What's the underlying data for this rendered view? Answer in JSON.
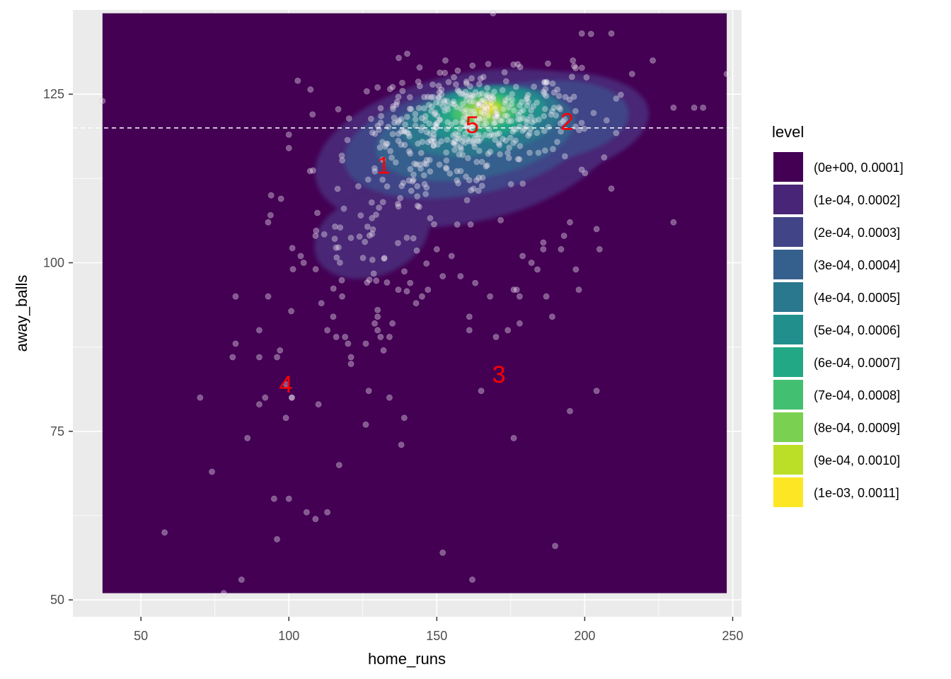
{
  "chart_data": {
    "type": "scatter",
    "title": "",
    "xlabel": "home_runs",
    "ylabel": "away_balls",
    "xlim": [
      27,
      253
    ],
    "ylim": [
      47.5,
      137.5
    ],
    "x_ticks": [
      50,
      100,
      150,
      200,
      250
    ],
    "y_ticks": [
      50,
      75,
      100,
      125
    ],
    "x_tick_labels": [
      "50",
      "100",
      "150",
      "200",
      "250"
    ],
    "y_tick_labels": [
      "50",
      "75",
      "100",
      "125"
    ],
    "grid": true,
    "background_color": "#EBEBEB",
    "raster_extent": {
      "x": [
        37,
        248
      ],
      "y": [
        51,
        137
      ]
    },
    "reference_line": {
      "type": "horizontal",
      "y": 120,
      "style": "dashed",
      "color": "#FFFFFF"
    },
    "legend": {
      "title": "level",
      "position": "right",
      "entries": [
        {
          "label": "(0e+00, 0.0001]",
          "color": "#440154"
        },
        {
          "label": "(1e-04, 0.0002]",
          "color": "#482576"
        },
        {
          "label": "(2e-04, 0.0003]",
          "color": "#414487"
        },
        {
          "label": "(3e-04, 0.0004]",
          "color": "#35608D"
        },
        {
          "label": "(4e-04, 0.0005]",
          "color": "#2A788E"
        },
        {
          "label": "(5e-04, 0.0006]",
          "color": "#21908C"
        },
        {
          "label": "(6e-04, 0.0007]",
          "color": "#22A884"
        },
        {
          "label": "(7e-04, 0.0008]",
          "color": "#43BF71"
        },
        {
          "label": "(8e-04, 0.0009]",
          "color": "#7AD151"
        },
        {
          "label": "(9e-04, 0.0010]",
          "color": "#BBDF27"
        },
        {
          "label": "(1e-03, 0.0011]",
          "color": "#FDE725"
        }
      ]
    },
    "density_blobs": [
      {
        "level": 1,
        "cx": 160,
        "cy": 117,
        "rx": 52,
        "ry": 11,
        "tilt": -12
      },
      {
        "level": 1,
        "cx": 128,
        "cy": 104,
        "rx": 20,
        "ry": 6,
        "tilt": -20
      },
      {
        "level": 1,
        "cx": 180,
        "cy": 120,
        "rx": 42,
        "ry": 8,
        "tilt": -8
      },
      {
        "level": 2,
        "cx": 160,
        "cy": 118,
        "rx": 42,
        "ry": 8,
        "tilt": -10
      },
      {
        "level": 2,
        "cx": 185,
        "cy": 121,
        "rx": 30,
        "ry": 6,
        "tilt": -6
      },
      {
        "level": 3,
        "cx": 163,
        "cy": 119,
        "rx": 34,
        "ry": 6.5,
        "tilt": -10
      },
      {
        "level": 4,
        "cx": 165,
        "cy": 121,
        "rx": 27,
        "ry": 5,
        "tilt": -8
      },
      {
        "level": 5,
        "cx": 166,
        "cy": 122,
        "rx": 21,
        "ry": 4,
        "tilt": -6
      },
      {
        "level": 6,
        "cx": 166,
        "cy": 122,
        "rx": 15,
        "ry": 3.2,
        "tilt": -6
      },
      {
        "level": 7,
        "cx": 166,
        "cy": 122.5,
        "rx": 11,
        "ry": 2.5,
        "tilt": -5
      },
      {
        "level": 8,
        "cx": 166,
        "cy": 122.5,
        "rx": 7.5,
        "ry": 1.8,
        "tilt": -4
      },
      {
        "level": 9,
        "cx": 167,
        "cy": 122.8,
        "rx": 4.5,
        "ry": 1.2,
        "tilt": -3
      },
      {
        "level": 10,
        "cx": 167,
        "cy": 123,
        "rx": 2.2,
        "ry": 0.7,
        "tilt": 0
      }
    ],
    "points_style": {
      "color": "#FFFFFF",
      "opacity": 0.35,
      "stroke": "#B8A6C8"
    },
    "point_clusters": [
      {
        "cx": 163,
        "cy": 122,
        "sx": 16,
        "sy": 3.2,
        "n": 320
      },
      {
        "cx": 145,
        "cy": 114,
        "sx": 18,
        "sy": 5,
        "n": 120
      },
      {
        "cx": 128,
        "cy": 103,
        "sx": 12,
        "sy": 4,
        "n": 45
      },
      {
        "cx": 195,
        "cy": 122,
        "sx": 12,
        "sy": 5,
        "n": 30
      }
    ],
    "points": [
      [
        37,
        124
      ],
      [
        248,
        128
      ],
      [
        230,
        123
      ],
      [
        237,
        123
      ],
      [
        240,
        123
      ],
      [
        230,
        106
      ],
      [
        223,
        130
      ],
      [
        216,
        128
      ],
      [
        209,
        134
      ],
      [
        199,
        134
      ],
      [
        169,
        137
      ],
      [
        196,
        130
      ],
      [
        140,
        131
      ],
      [
        103,
        127
      ],
      [
        108,
        122
      ],
      [
        100,
        119
      ],
      [
        100,
        117
      ],
      [
        94,
        110
      ],
      [
        93,
        106
      ],
      [
        109,
        104
      ],
      [
        104,
        101
      ],
      [
        105,
        100
      ],
      [
        111,
        94
      ],
      [
        118,
        95
      ],
      [
        116,
        89
      ],
      [
        119,
        89
      ],
      [
        121,
        86
      ],
      [
        121,
        85
      ],
      [
        120,
        88
      ],
      [
        115,
        92
      ],
      [
        113,
        90
      ],
      [
        126,
        88
      ],
      [
        129,
        91
      ],
      [
        130,
        93
      ],
      [
        130,
        92
      ],
      [
        130,
        90
      ],
      [
        131,
        89
      ],
      [
        132,
        87
      ],
      [
        134,
        89
      ],
      [
        135,
        91
      ],
      [
        137,
        96
      ],
      [
        141,
        97
      ],
      [
        143,
        94
      ],
      [
        145,
        95
      ],
      [
        147,
        96
      ],
      [
        150,
        102
      ],
      [
        152,
        98
      ],
      [
        155,
        101
      ],
      [
        158,
        98
      ],
      [
        161,
        92
      ],
      [
        161,
        90
      ],
      [
        163,
        97
      ],
      [
        168,
        95
      ],
      [
        170,
        89
      ],
      [
        174,
        90
      ],
      [
        177,
        96
      ],
      [
        176,
        96
      ],
      [
        178,
        95
      ],
      [
        178,
        91
      ],
      [
        179,
        101
      ],
      [
        182,
        100
      ],
      [
        186,
        103
      ],
      [
        184,
        99
      ],
      [
        186,
        102
      ],
      [
        189,
        92
      ],
      [
        187,
        95
      ],
      [
        192,
        102
      ],
      [
        193,
        104
      ],
      [
        195,
        106
      ],
      [
        197,
        99
      ],
      [
        198,
        96
      ],
      [
        204,
        105
      ],
      [
        204,
        81
      ],
      [
        205,
        102
      ],
      [
        209,
        111
      ],
      [
        195,
        78
      ],
      [
        190,
        58
      ],
      [
        176,
        74
      ],
      [
        162,
        53
      ],
      [
        152,
        57
      ],
      [
        165,
        81
      ],
      [
        139,
        77
      ],
      [
        134,
        80
      ],
      [
        127,
        81
      ],
      [
        126,
        76
      ],
      [
        138,
        73
      ],
      [
        117,
        70
      ],
      [
        113,
        63
      ],
      [
        106,
        63
      ],
      [
        109,
        62
      ],
      [
        100,
        65
      ],
      [
        95,
        65
      ],
      [
        96,
        59
      ],
      [
        110,
        79
      ],
      [
        101,
        80
      ],
      [
        99,
        82
      ],
      [
        99,
        77
      ],
      [
        97,
        87
      ],
      [
        96,
        86
      ],
      [
        92,
        80
      ],
      [
        90,
        79
      ],
      [
        86,
        74
      ],
      [
        82,
        95
      ],
      [
        82,
        88
      ],
      [
        81,
        86
      ],
      [
        70,
        80
      ],
      [
        74,
        69
      ],
      [
        58,
        60
      ],
      [
        78,
        51
      ],
      [
        84,
        53
      ],
      [
        90,
        86
      ],
      [
        90,
        90
      ],
      [
        93,
        95
      ],
      [
        101,
        80
      ]
    ],
    "annotations": [
      {
        "text": "1",
        "x": 132,
        "y": 114.5
      },
      {
        "text": "2",
        "x": 194,
        "y": 121
      },
      {
        "text": "3",
        "x": 171,
        "y": 83.5
      },
      {
        "text": "4",
        "x": 99,
        "y": 82
      },
      {
        "text": "5",
        "x": 162,
        "y": 120.5
      }
    ]
  }
}
